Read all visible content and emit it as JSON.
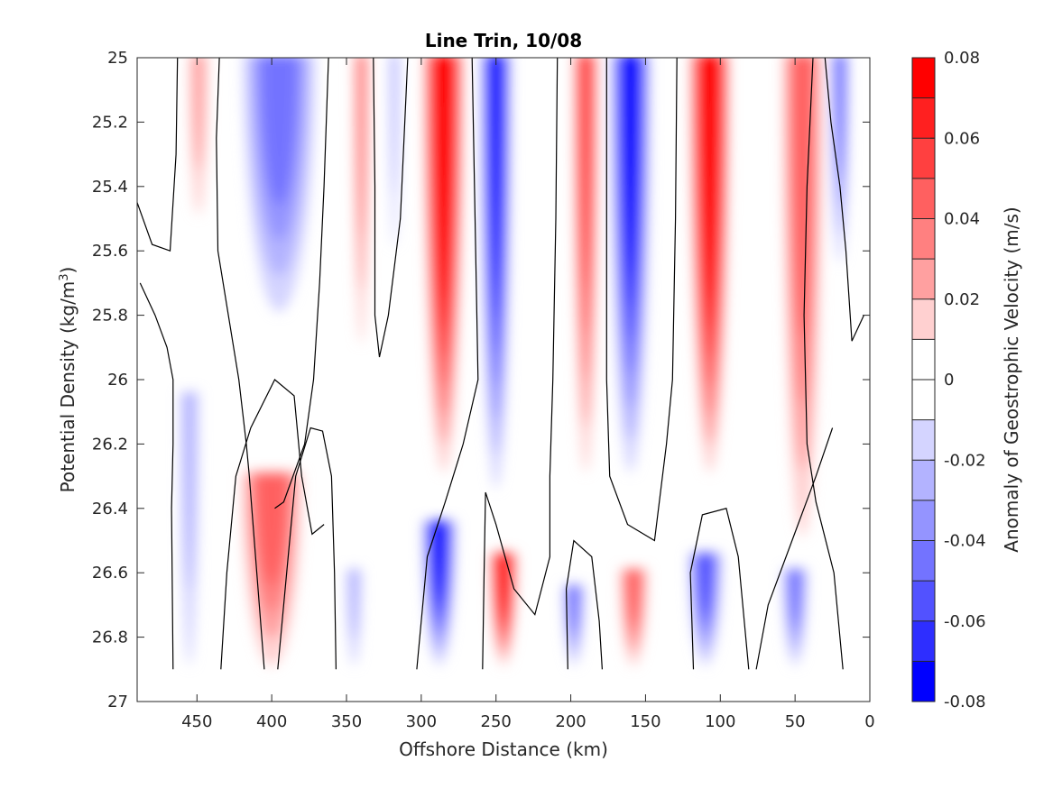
{
  "chart_data": {
    "type": "heatmap",
    "subtype": "filled-contour",
    "title": "Line Trin, 10/08",
    "xlabel": "Offshore Distance (km)",
    "ylabel": "Potential Density (kg/m",
    "ylabel_sup": "3",
    "ylabel_close": ")",
    "colorbar_label": "Anomaly of Geostrophic Velocity (m/s)",
    "x_reversed": true,
    "y_reversed": true,
    "xlim": [
      490,
      0
    ],
    "ylim": [
      25,
      27
    ],
    "xticks": [
      450,
      400,
      350,
      300,
      250,
      200,
      150,
      100,
      50,
      0
    ],
    "xtick_labels": [
      "450",
      "400",
      "350",
      "300",
      "250",
      "200",
      "150",
      "100",
      "50",
      "0"
    ],
    "yticks": [
      25,
      25.2,
      25.4,
      25.6,
      25.8,
      26,
      26.2,
      26.4,
      26.6,
      26.8,
      27
    ],
    "ytick_labels": [
      "25",
      "25.2",
      "25.4",
      "25.6",
      "25.8",
      "26",
      "26.2",
      "26.4",
      "26.6",
      "26.8",
      "27"
    ],
    "colorbar": {
      "range": [
        -0.08,
        0.08
      ],
      "ticks": [
        0.08,
        0.06,
        0.04,
        0.02,
        0,
        -0.02,
        -0.04,
        -0.06,
        -0.08
      ],
      "tick_labels": [
        "0.08",
        "0.06",
        "0.04",
        "0.02",
        "0",
        "-0.02",
        "-0.04",
        "-0.06",
        "-0.08"
      ],
      "levels": [
        0.08,
        0.07,
        0.06,
        0.05,
        0.04,
        0.03,
        0.02,
        0.01,
        0,
        -0.01,
        -0.02,
        -0.03,
        -0.04,
        -0.05,
        -0.06,
        -0.07,
        -0.08
      ],
      "colors": [
        "#ff0000",
        "#ff2020",
        "#ff4040",
        "#ff6060",
        "#ff8080",
        "#ffa0a0",
        "#ffd0d0",
        "#ffffff",
        "#ffffff",
        "#d4d4ff",
        "#b3b3ff",
        "#9494ff",
        "#7373ff",
        "#5252ff",
        "#2e2eff",
        "#0000ff"
      ]
    },
    "grid": false,
    "cores": [
      {
        "x": 449,
        "y_top": 25.0,
        "y_bot": 25.5,
        "width": 12,
        "value": 0.02
      },
      {
        "x": 395,
        "y_top": 25.0,
        "y_bot": 25.8,
        "width": 48,
        "value": -0.035
      },
      {
        "x": 340,
        "y_top": 25.0,
        "y_bot": 25.9,
        "width": 10,
        "value": 0.03
      },
      {
        "x": 318,
        "y_top": 25.0,
        "y_bot": 25.6,
        "width": 6,
        "value": -0.02
      },
      {
        "x": 285,
        "y_top": 25.0,
        "y_bot": 26.3,
        "width": 26,
        "value": 0.075
      },
      {
        "x": 250,
        "y_top": 25.0,
        "y_bot": 26.35,
        "width": 20,
        "value": -0.065
      },
      {
        "x": 190,
        "y_top": 25.0,
        "y_bot": 26.3,
        "width": 16,
        "value": 0.045
      },
      {
        "x": 160,
        "y_top": 25.0,
        "y_bot": 26.3,
        "width": 26,
        "value": -0.065
      },
      {
        "x": 107,
        "y_top": 25.0,
        "y_bot": 26.3,
        "width": 26,
        "value": 0.075
      },
      {
        "x": 45,
        "y_top": 25.0,
        "y_bot": 26.5,
        "width": 26,
        "value": 0.04
      },
      {
        "x": 20,
        "y_top": 25.0,
        "y_bot": 25.65,
        "width": 12,
        "value": -0.035
      },
      {
        "x": 400,
        "y_top": 26.3,
        "y_bot": 26.9,
        "width": 40,
        "value": 0.035
      },
      {
        "x": 455,
        "y_top": 26.05,
        "y_bot": 26.9,
        "width": 12,
        "value": -0.015
      },
      {
        "x": 345,
        "y_top": 26.6,
        "y_bot": 26.9,
        "width": 10,
        "value": -0.015
      },
      {
        "x": 288,
        "y_top": 26.45,
        "y_bot": 26.9,
        "width": 22,
        "value": -0.07
      },
      {
        "x": 245,
        "y_top": 26.55,
        "y_bot": 26.9,
        "width": 18,
        "value": 0.07
      },
      {
        "x": 198,
        "y_top": 26.65,
        "y_bot": 26.9,
        "width": 14,
        "value": -0.035
      },
      {
        "x": 158,
        "y_top": 26.6,
        "y_bot": 26.9,
        "width": 18,
        "value": 0.035
      },
      {
        "x": 110,
        "y_top": 26.55,
        "y_bot": 26.9,
        "width": 22,
        "value": -0.045
      },
      {
        "x": 50,
        "y_top": 26.6,
        "y_bot": 26.9,
        "width": 16,
        "value": -0.035
      }
    ],
    "zero_contours": [
      [
        [
          490,
          25.45
        ],
        [
          480,
          25.58
        ],
        [
          468,
          25.6
        ],
        [
          464,
          25.3
        ],
        [
          463,
          25.0
        ]
      ],
      [
        [
          435,
          25.0
        ],
        [
          437,
          25.25
        ],
        [
          436,
          25.6
        ],
        [
          429,
          25.8
        ],
        [
          422,
          26.0
        ],
        [
          417,
          26.2
        ],
        [
          415,
          26.3
        ],
        [
          410,
          26.6
        ],
        [
          405,
          26.9
        ]
      ],
      [
        [
          466,
          26.9
        ],
        [
          467,
          26.4
        ],
        [
          466,
          26.2
        ],
        [
          466,
          26.0
        ],
        [
          470,
          25.9
        ],
        [
          478,
          25.8
        ],
        [
          488,
          25.7
        ]
      ],
      [
        [
          362,
          25.0
        ],
        [
          365,
          25.4
        ],
        [
          368,
          25.7
        ],
        [
          372,
          26.0
        ],
        [
          378,
          26.2
        ],
        [
          392,
          26.38
        ],
        [
          398,
          26.4
        ]
      ],
      [
        [
          434,
          26.9
        ],
        [
          430,
          26.6
        ],
        [
          424,
          26.3
        ],
        [
          414,
          26.15
        ],
        [
          398,
          26.0
        ],
        [
          385,
          26.05
        ],
        [
          380,
          26.3
        ],
        [
          373,
          26.48
        ],
        [
          365,
          26.45
        ]
      ],
      [
        [
          357,
          26.9
        ],
        [
          358,
          26.6
        ],
        [
          360,
          26.3
        ],
        [
          366,
          26.16
        ],
        [
          374,
          26.15
        ],
        [
          384,
          26.3
        ],
        [
          390,
          26.6
        ],
        [
          396,
          26.9
        ]
      ],
      [
        [
          332,
          25.0
        ],
        [
          331,
          25.4
        ],
        [
          331,
          25.8
        ],
        [
          328,
          25.93
        ],
        [
          322,
          25.8
        ],
        [
          314,
          25.5
        ],
        [
          309,
          25.0
        ]
      ],
      [
        [
          303,
          26.9
        ],
        [
          296,
          26.55
        ],
        [
          284,
          26.38
        ],
        [
          272,
          26.2
        ],
        [
          262,
          26.0
        ],
        [
          264,
          25.5
        ],
        [
          266,
          25.0
        ]
      ],
      [
        [
          259,
          26.9
        ],
        [
          258,
          26.6
        ],
        [
          257,
          26.35
        ],
        [
          250,
          26.45
        ],
        [
          238,
          26.65
        ],
        [
          224,
          26.73
        ],
        [
          214,
          26.55
        ],
        [
          214,
          26.3
        ],
        [
          212,
          26.0
        ],
        [
          210,
          25.5
        ],
        [
          209,
          25.0
        ]
      ],
      [
        [
          202,
          26.9
        ],
        [
          203,
          26.65
        ],
        [
          198,
          26.5
        ],
        [
          186,
          26.55
        ],
        [
          181,
          26.75
        ],
        [
          179,
          26.9
        ]
      ],
      [
        [
          176,
          25.0
        ],
        [
          176,
          25.5
        ],
        [
          176,
          26.0
        ],
        [
          174,
          26.3
        ],
        [
          162,
          26.45
        ],
        [
          144,
          26.5
        ],
        [
          136,
          26.2
        ],
        [
          132,
          26.0
        ],
        [
          130,
          25.5
        ],
        [
          129,
          25.0
        ]
      ],
      [
        [
          118,
          26.9
        ],
        [
          120,
          26.6
        ],
        [
          112,
          26.42
        ],
        [
          96,
          26.4
        ],
        [
          88,
          26.55
        ],
        [
          81,
          26.9
        ]
      ],
      [
        [
          76,
          26.9
        ],
        [
          68,
          26.7
        ],
        [
          52,
          26.5
        ],
        [
          36,
          26.3
        ],
        [
          25,
          26.15
        ]
      ],
      [
        [
          38,
          25.0
        ],
        [
          42,
          25.4
        ],
        [
          44,
          25.8
        ],
        [
          42,
          26.2
        ],
        [
          36,
          26.38
        ],
        [
          24,
          26.6
        ],
        [
          18,
          26.9
        ]
      ],
      [
        [
          4,
          25.8
        ],
        [
          12,
          25.88
        ],
        [
          16,
          25.6
        ],
        [
          20,
          25.4
        ],
        [
          26,
          25.2
        ],
        [
          30,
          25.0
        ]
      ]
    ]
  }
}
